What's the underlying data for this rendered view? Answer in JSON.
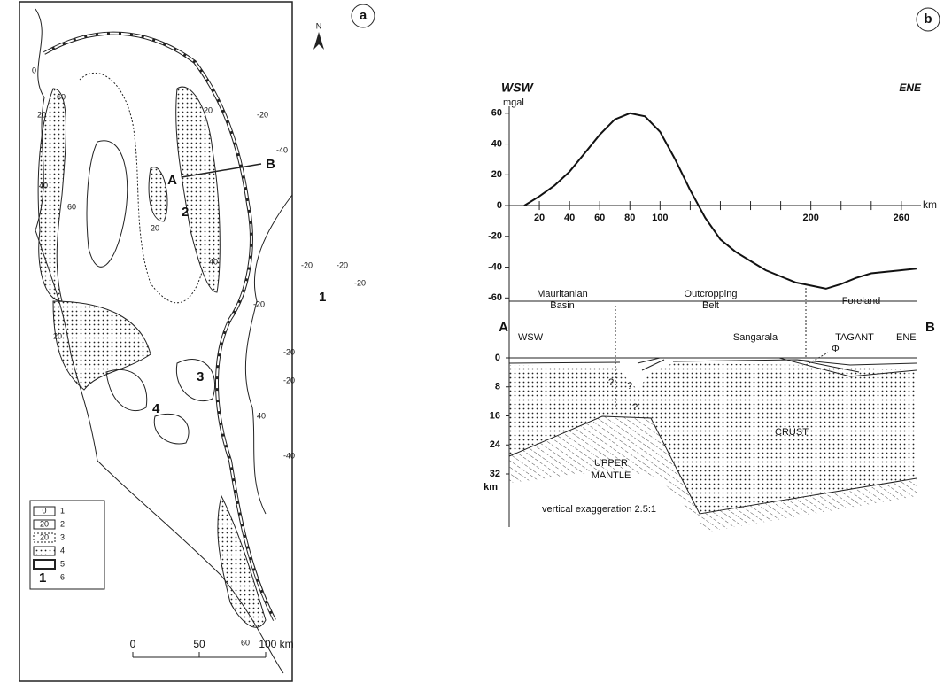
{
  "panel_labels": [
    "a",
    "b"
  ],
  "map": {
    "north": "N",
    "profile_ends": [
      "A",
      "B"
    ],
    "regions": [
      "1",
      "2",
      "3",
      "4"
    ],
    "contour_labels": [
      "0",
      "-20",
      "20",
      "40",
      "60",
      "-40"
    ],
    "legend": [
      {
        "symbol": "0",
        "number": "1"
      },
      {
        "symbol": "20",
        "number": "2"
      },
      {
        "symbol": "20",
        "number": "3"
      },
      {
        "number": "4"
      },
      {
        "number": "5"
      },
      {
        "symbol": "1",
        "number": "6"
      }
    ],
    "scale": [
      "0",
      "50",
      "100 km"
    ]
  },
  "chart_data": {
    "type": "line",
    "left_label": "WSW",
    "right_label": "ENE",
    "y_label": "mgal",
    "x_label": "km",
    "x": [
      10,
      20,
      30,
      40,
      50,
      60,
      70,
      80,
      90,
      100,
      110,
      120,
      130,
      140,
      150,
      160,
      170,
      180,
      190,
      200,
      210,
      220,
      230,
      240,
      250,
      260,
      270
    ],
    "values": [
      0,
      6,
      13,
      22,
      34,
      46,
      56,
      60,
      58,
      48,
      30,
      10,
      -8,
      -22,
      -30,
      -36,
      -42,
      -46,
      -50,
      -52,
      -54,
      -51,
      -47,
      -44,
      -43,
      -42,
      -41
    ],
    "color": "#111111",
    "xlim": [
      0,
      273
    ],
    "ylim": [
      -65,
      76
    ],
    "xticks": [
      20,
      40,
      60,
      80,
      100,
      200,
      260
    ],
    "xminor": [
      120,
      140,
      160,
      180,
      220,
      240
    ],
    "yticks": [
      -60,
      -40,
      -20,
      0,
      20,
      40,
      60
    ],
    "zones": [
      [
        "Mauritanian",
        "Basin"
      ],
      [
        "Outcropping",
        "Belt"
      ],
      [
        "Foreland"
      ]
    ]
  },
  "section": {
    "ends": [
      "A",
      "B"
    ],
    "directions": [
      "WSW",
      "ENE"
    ],
    "places": [
      "Sangarala",
      "TAGANT"
    ],
    "symbol": "Φ",
    "crust": "CRUST",
    "mantle": [
      "UPPER",
      "MANTLE"
    ],
    "unknown": "?",
    "depth_ticks": [
      0,
      8,
      16,
      24,
      32
    ],
    "depth_unit": "km",
    "note": "vertical exaggeration 2.5:1"
  }
}
